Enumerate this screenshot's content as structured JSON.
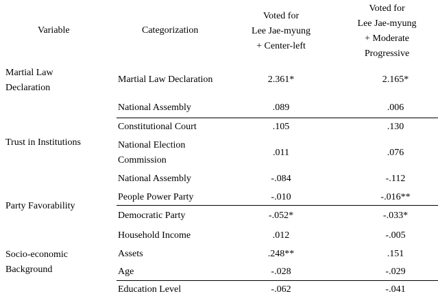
{
  "header": {
    "variable": "Variable",
    "categorization": "Categorization",
    "col1": "Voted for\nLee Jae-myung\n+ Center-left",
    "col2": "Voted for\nLee Jae-myung\n+ Moderate\nProgressive"
  },
  "groups": [
    {
      "label": "Martial Law Declaration"
    },
    {
      "label": "Trust in Institutions"
    },
    {
      "label": "Party Favorability"
    },
    {
      "label": "Socio-economic Background"
    }
  ],
  "rows": [
    {
      "category": "Martial Law Declaration",
      "col1": "2.361*",
      "col2": "2.165*"
    },
    {
      "category": "National Assembly",
      "col1": ".089",
      "col2": ".006"
    },
    {
      "category": "Constitutional Court",
      "col1": ".105",
      "col2": ".130"
    },
    {
      "category": "National Election Commission",
      "col1": ".011",
      "col2": ".076"
    },
    {
      "category": "National Assembly",
      "col1": "-.084",
      "col2": "-.112"
    },
    {
      "category": "People Power Party",
      "col1": "-.010",
      "col2": "-.016**"
    },
    {
      "category": "Democratic Party",
      "col1": "-.052*",
      "col2": "-.033*"
    },
    {
      "category": "Household Income",
      "col1": ".012",
      "col2": "-.005"
    },
    {
      "category": "Assets",
      "col1": ".248**",
      "col2": ".151"
    },
    {
      "category": "Age",
      "col1": "-.028",
      "col2": "-.029"
    },
    {
      "category": "Education Level",
      "col1": "-.062",
      "col2": "-.041"
    }
  ]
}
